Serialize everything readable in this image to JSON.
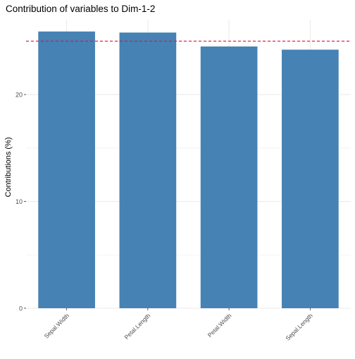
{
  "chart_data": {
    "type": "bar",
    "title": "Contribution of variables to Dim-1-2",
    "ylabel": "Contributions (%)",
    "xlabel": "",
    "categories": [
      "Sepal.Width",
      "Petal.Length",
      "Petal.Width",
      "Sepal.Length"
    ],
    "values": [
      25.9,
      25.8,
      24.5,
      24.2
    ],
    "reference_line": 25,
    "ylim": [
      0,
      27
    ],
    "yticks": [
      0,
      10,
      20
    ],
    "grid": true,
    "legend": "none",
    "colors": {
      "bar": "#4682b4",
      "reference_line": "#dc143c",
      "grid": "#ebebeb",
      "text": "#4d4d4d"
    }
  }
}
